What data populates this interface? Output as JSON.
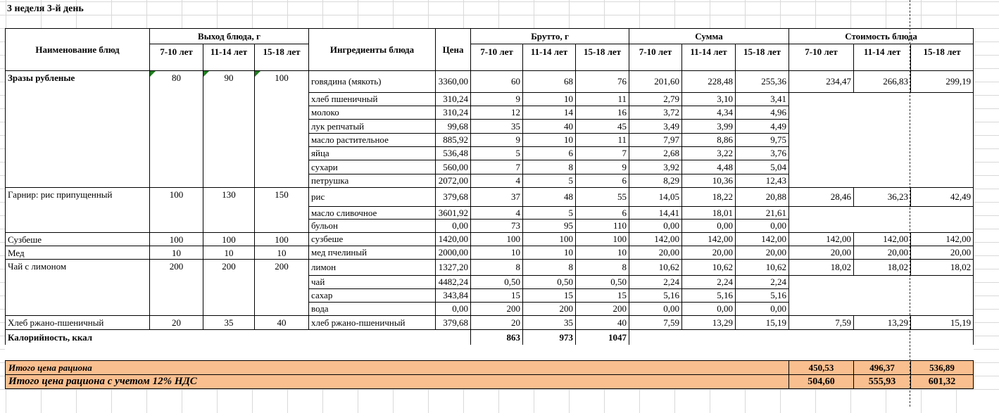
{
  "title": "3 неделя 3-й день",
  "table": {
    "headers": {
      "name": "Наименование блюд",
      "output": "Выход блюда, г",
      "ingredients": "Ингредиенты блюда",
      "price": "Цена",
      "brutto": "Брутто, г",
      "sum": "Сумма",
      "cost": "Стоимость блюда",
      "age_groups": [
        "7-10 лет",
        "11-14 лет",
        "15-18 лет"
      ]
    },
    "dishes": [
      {
        "name": "Зразы рубленые",
        "bold": true,
        "output_flags": true,
        "output": [
          "80",
          "90",
          "100"
        ],
        "cost": [
          "234,47",
          "266,83",
          "299,19"
        ],
        "ingredients": [
          {
            "name": "говядина (мякоть)",
            "price": "3360,00",
            "brutto": [
              "60",
              "68",
              "76"
            ],
            "sum": [
              "201,60",
              "228,48",
              "255,36"
            ]
          },
          {
            "name": "хлеб пшеничный",
            "price": "310,24",
            "brutto": [
              "9",
              "10",
              "11"
            ],
            "sum": [
              "2,79",
              "3,10",
              "3,41"
            ]
          },
          {
            "name": "молоко",
            "price": "310,24",
            "brutto": [
              "12",
              "14",
              "16"
            ],
            "sum": [
              "3,72",
              "4,34",
              "4,96"
            ]
          },
          {
            "name": "лук репчатый",
            "price": "99,68",
            "brutto": [
              "35",
              "40",
              "45"
            ],
            "sum": [
              "3,49",
              "3,99",
              "4,49"
            ]
          },
          {
            "name": "масло растительное",
            "price": "885,92",
            "brutto": [
              "9",
              "10",
              "11"
            ],
            "sum": [
              "7,97",
              "8,86",
              "9,75"
            ]
          },
          {
            "name": "яйца",
            "price": "536,48",
            "brutto": [
              "5",
              "6",
              "7"
            ],
            "sum": [
              "2,68",
              "3,22",
              "3,76"
            ]
          },
          {
            "name": "сухари",
            "price": "560,00",
            "brutto": [
              "7",
              "8",
              "9"
            ],
            "sum": [
              "3,92",
              "4,48",
              "5,04"
            ]
          },
          {
            "name": "петрушка",
            "price": "2072,00",
            "brutto": [
              "4",
              "5",
              "6"
            ],
            "sum": [
              "8,29",
              "10,36",
              "12,43"
            ]
          }
        ]
      },
      {
        "name": "Гарнир: рис припущенный",
        "bold": false,
        "output_flags": false,
        "output": [
          "100",
          "130",
          "150"
        ],
        "cost": [
          "28,46",
          "36,23",
          "42,49"
        ],
        "ingredients": [
          {
            "name": "рис",
            "price": "379,68",
            "brutto": [
              "37",
              "48",
              "55"
            ],
            "sum": [
              "14,05",
              "18,22",
              "20,88"
            ]
          },
          {
            "name": "масло сливочное",
            "price": "3601,92",
            "brutto": [
              "4",
              "5",
              "6"
            ],
            "sum": [
              "14,41",
              "18,01",
              "21,61"
            ]
          },
          {
            "name": "бульон",
            "price": "0,00",
            "brutto": [
              "73",
              "95",
              "110"
            ],
            "sum": [
              "0,00",
              "0,00",
              "0,00"
            ]
          }
        ]
      },
      {
        "name": "Сузбеше",
        "bold": false,
        "output_flags": false,
        "output": [
          "100",
          "100",
          "100"
        ],
        "cost": [
          "142,00",
          "142,00",
          "142,00"
        ],
        "ingredients": [
          {
            "name": "сузбеше",
            "price": "1420,00",
            "brutto": [
              "100",
              "100",
              "100"
            ],
            "sum": [
              "142,00",
              "142,00",
              "142,00"
            ]
          }
        ]
      },
      {
        "name": "Мед",
        "bold": false,
        "output_flags": false,
        "output": [
          "10",
          "10",
          "10"
        ],
        "cost": [
          "20,00",
          "20,00",
          "20,00"
        ],
        "ingredients": [
          {
            "name": "мед пчелиный",
            "price": "2000,00",
            "brutto": [
              "10",
              "10",
              "10"
            ],
            "sum": [
              "20,00",
              "20,00",
              "20,00"
            ]
          }
        ]
      },
      {
        "name": "Чай с лимоном",
        "bold": false,
        "output_flags": false,
        "output": [
          "200",
          "200",
          "200"
        ],
        "cost": [
          "18,02",
          "18,02",
          "18,02"
        ],
        "ingredients": [
          {
            "name": "лимон",
            "price": "1327,20",
            "brutto": [
              "8",
              "8",
              "8"
            ],
            "sum": [
              "10,62",
              "10,62",
              "10,62"
            ]
          },
          {
            "name": "чай",
            "price": "4482,24",
            "brutto": [
              "0,50",
              "0,50",
              "0,50"
            ],
            "sum": [
              "2,24",
              "2,24",
              "2,24"
            ]
          },
          {
            "name": "сахар",
            "price": "343,84",
            "brutto": [
              "15",
              "15",
              "15"
            ],
            "sum": [
              "5,16",
              "5,16",
              "5,16"
            ]
          },
          {
            "name": "вода",
            "price": "0,00",
            "brutto": [
              "200",
              "200",
              "200"
            ],
            "sum": [
              "0,00",
              "0,00",
              "0,00"
            ]
          }
        ]
      },
      {
        "name": "Хлеб ржано-пшеничный",
        "bold": false,
        "output_flags": false,
        "output": [
          "20",
          "35",
          "40"
        ],
        "cost": [
          "7,59",
          "13,29",
          "15,19"
        ],
        "ingredients": [
          {
            "name": "хлеб ржано-пшеничный",
            "price": "379,68",
            "brutto": [
              "20",
              "35",
              "40"
            ],
            "sum": [
              "7,59",
              "13,29",
              "15,19"
            ]
          }
        ]
      }
    ],
    "calories_row": {
      "label": "Калорийность, ккал",
      "values": [
        "863",
        "973",
        "1047"
      ]
    }
  },
  "totals": [
    {
      "label": "Итого цена рациона",
      "values": [
        "450,53",
        "496,37",
        "536,89"
      ]
    },
    {
      "label": "Итого цена рациона с учетом 12% НДС",
      "values": [
        "504,60",
        "555,93",
        "601,32"
      ]
    }
  ],
  "colors": {
    "totals_bg": "#FABF8F",
    "flag_green": "#1F7D1F",
    "gridline": "#D9D9D9"
  }
}
